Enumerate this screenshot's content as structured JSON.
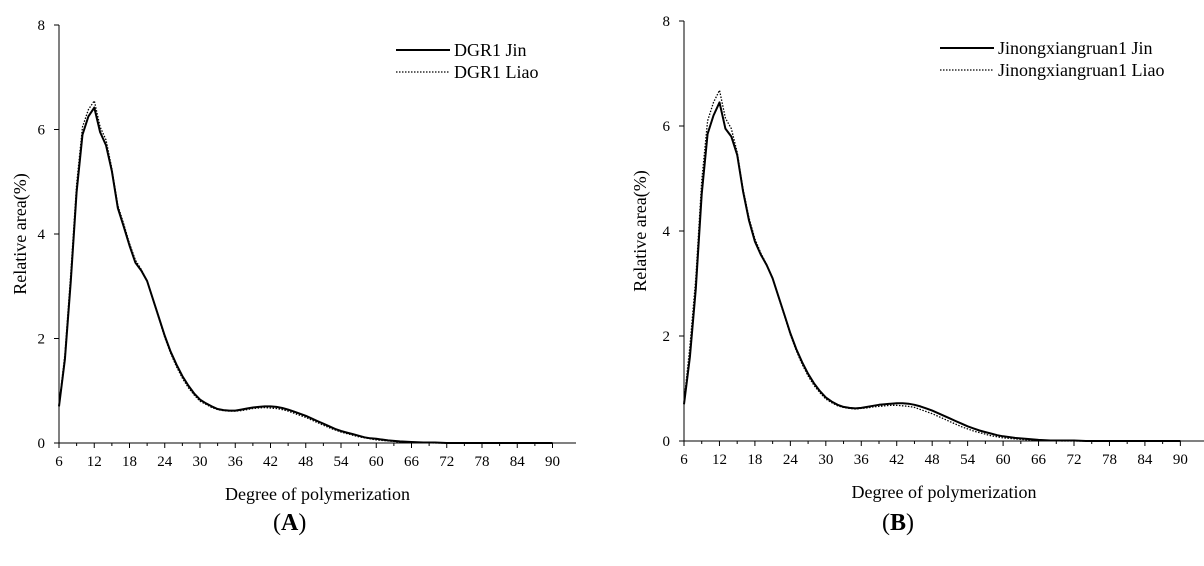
{
  "chart_data": [
    {
      "type": "line",
      "panel_label": "A",
      "xlabel": "Degree of polymerization",
      "ylabel": "Relative area(%)",
      "xlim": [
        6,
        94
      ],
      "ylim": [
        0,
        8
      ],
      "xticks": [
        6,
        12,
        18,
        24,
        30,
        36,
        42,
        48,
        54,
        60,
        66,
        72,
        78,
        84,
        90
      ],
      "yticks": [
        0,
        2,
        4,
        6,
        8
      ],
      "legend_position": "top-right",
      "grid": false,
      "series": [
        {
          "name": "DGR1 Jin",
          "style": "solid",
          "x": [
            6,
            7,
            8,
            9,
            10,
            11,
            12,
            13,
            14,
            15,
            16,
            17,
            18,
            19,
            20,
            21,
            22,
            23,
            24,
            25,
            26,
            27,
            28,
            29,
            30,
            31,
            32,
            33,
            34,
            35,
            36,
            37,
            38,
            39,
            40,
            41,
            42,
            43,
            44,
            45,
            46,
            47,
            48,
            49,
            50,
            51,
            52,
            53,
            54,
            55,
            56,
            57,
            58,
            59,
            60,
            62,
            64,
            66,
            68,
            70,
            72,
            74,
            76,
            78,
            80,
            82,
            84,
            86,
            88,
            90
          ],
          "y": [
            0.7,
            1.6,
            3.1,
            4.8,
            5.9,
            6.25,
            6.42,
            5.95,
            5.7,
            5.2,
            4.5,
            4.15,
            3.78,
            3.45,
            3.3,
            3.1,
            2.75,
            2.4,
            2.05,
            1.75,
            1.5,
            1.28,
            1.1,
            0.95,
            0.83,
            0.76,
            0.7,
            0.65,
            0.63,
            0.62,
            0.62,
            0.64,
            0.66,
            0.68,
            0.69,
            0.7,
            0.7,
            0.69,
            0.67,
            0.64,
            0.6,
            0.56,
            0.52,
            0.47,
            0.42,
            0.37,
            0.32,
            0.27,
            0.23,
            0.2,
            0.17,
            0.14,
            0.11,
            0.09,
            0.08,
            0.05,
            0.03,
            0.02,
            0.01,
            0.01,
            0.0,
            0.0,
            0.0,
            0.0,
            0.0,
            0.0,
            0.0,
            0.0,
            0.0,
            0.0
          ]
        },
        {
          "name": "DGR1 Liao",
          "style": "dotted",
          "x": [
            6,
            7,
            8,
            9,
            10,
            11,
            12,
            13,
            14,
            15,
            16,
            17,
            18,
            19,
            20,
            21,
            22,
            23,
            24,
            25,
            26,
            27,
            28,
            29,
            30,
            31,
            32,
            33,
            34,
            35,
            36,
            37,
            38,
            39,
            40,
            41,
            42,
            43,
            44,
            45,
            46,
            47,
            48,
            49,
            50,
            51,
            52,
            53,
            54,
            55,
            56,
            57,
            58,
            59,
            60,
            62,
            64,
            66,
            68,
            70,
            72,
            74,
            76,
            78,
            80,
            82,
            84,
            86,
            88,
            90
          ],
          "y": [
            0.72,
            1.7,
            3.25,
            4.95,
            6.05,
            6.38,
            6.55,
            6.05,
            5.8,
            5.25,
            4.55,
            4.2,
            3.82,
            3.5,
            3.32,
            3.1,
            2.74,
            2.38,
            2.02,
            1.72,
            1.46,
            1.24,
            1.06,
            0.92,
            0.8,
            0.74,
            0.68,
            0.64,
            0.62,
            0.61,
            0.61,
            0.62,
            0.64,
            0.66,
            0.67,
            0.68,
            0.67,
            0.66,
            0.64,
            0.61,
            0.57,
            0.53,
            0.49,
            0.44,
            0.39,
            0.34,
            0.29,
            0.25,
            0.21,
            0.18,
            0.15,
            0.12,
            0.1,
            0.08,
            0.06,
            0.04,
            0.02,
            0.01,
            0.01,
            0.0,
            0.0,
            0.0,
            0.0,
            0.0,
            0.0,
            0.0,
            0.0,
            0.0,
            0.0,
            0.0
          ]
        }
      ]
    },
    {
      "type": "line",
      "panel_label": "B",
      "xlabel": "Degree of polymerization",
      "ylabel": "Relative area(%)",
      "xlim": [
        6,
        94
      ],
      "ylim": [
        0,
        8
      ],
      "xticks": [
        6,
        12,
        18,
        24,
        30,
        36,
        42,
        48,
        54,
        60,
        66,
        72,
        78,
        84,
        90
      ],
      "yticks": [
        0,
        2,
        4,
        6,
        8
      ],
      "legend_position": "top-right",
      "grid": false,
      "series": [
        {
          "name": "Jinongxiangruan1 Jin",
          "style": "solid",
          "x": [
            6,
            7,
            8,
            9,
            10,
            11,
            12,
            13,
            14,
            15,
            16,
            17,
            18,
            19,
            20,
            21,
            22,
            23,
            24,
            25,
            26,
            27,
            28,
            29,
            30,
            31,
            32,
            33,
            34,
            35,
            36,
            37,
            38,
            39,
            40,
            41,
            42,
            43,
            44,
            45,
            46,
            47,
            48,
            49,
            50,
            51,
            52,
            53,
            54,
            55,
            56,
            57,
            58,
            59,
            60,
            62,
            64,
            66,
            68,
            70,
            72,
            74,
            76,
            78,
            80,
            82,
            84,
            86,
            88,
            90
          ],
          "y": [
            0.7,
            1.6,
            2.9,
            4.7,
            5.85,
            6.2,
            6.45,
            5.95,
            5.8,
            5.45,
            4.75,
            4.2,
            3.8,
            3.55,
            3.35,
            3.1,
            2.75,
            2.4,
            2.05,
            1.75,
            1.5,
            1.28,
            1.1,
            0.95,
            0.83,
            0.75,
            0.69,
            0.65,
            0.63,
            0.62,
            0.63,
            0.65,
            0.67,
            0.69,
            0.7,
            0.71,
            0.72,
            0.72,
            0.71,
            0.69,
            0.66,
            0.62,
            0.58,
            0.53,
            0.48,
            0.43,
            0.38,
            0.33,
            0.28,
            0.24,
            0.2,
            0.17,
            0.14,
            0.11,
            0.09,
            0.06,
            0.04,
            0.02,
            0.01,
            0.01,
            0.01,
            0.0,
            0.0,
            0.0,
            0.0,
            0.0,
            0.0,
            0.0,
            0.0,
            0.0
          ]
        },
        {
          "name": "Jinongxiangruan1 Liao",
          "style": "dotted",
          "x": [
            6,
            7,
            8,
            9,
            10,
            11,
            12,
            13,
            14,
            15,
            16,
            17,
            18,
            19,
            20,
            21,
            22,
            23,
            24,
            25,
            26,
            27,
            28,
            29,
            30,
            31,
            32,
            33,
            34,
            35,
            36,
            37,
            38,
            39,
            40,
            41,
            42,
            43,
            44,
            45,
            46,
            47,
            48,
            49,
            50,
            51,
            52,
            53,
            54,
            55,
            56,
            57,
            58,
            59,
            60,
            62,
            64,
            66,
            68,
            70,
            72,
            74,
            76,
            78,
            80,
            82,
            84,
            86,
            88,
            90
          ],
          "y": [
            0.75,
            1.8,
            3.1,
            4.95,
            6.1,
            6.45,
            6.68,
            6.15,
            5.95,
            5.5,
            4.8,
            4.25,
            3.85,
            3.58,
            3.36,
            3.1,
            2.74,
            2.38,
            2.02,
            1.72,
            1.46,
            1.24,
            1.06,
            0.92,
            0.8,
            0.73,
            0.67,
            0.64,
            0.62,
            0.61,
            0.62,
            0.63,
            0.65,
            0.66,
            0.67,
            0.68,
            0.68,
            0.67,
            0.66,
            0.64,
            0.6,
            0.56,
            0.52,
            0.47,
            0.42,
            0.37,
            0.32,
            0.27,
            0.23,
            0.19,
            0.16,
            0.13,
            0.1,
            0.08,
            0.06,
            0.04,
            0.02,
            0.01,
            0.01,
            0.0,
            0.0,
            0.0,
            0.0,
            0.0,
            0.0,
            0.0,
            0.0,
            0.0,
            0.0,
            0.0
          ]
        }
      ]
    }
  ]
}
